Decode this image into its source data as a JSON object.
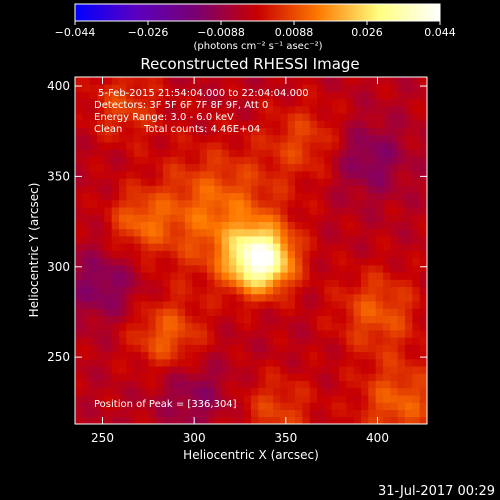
{
  "chart_data": {
    "type": "heatmap",
    "title": "Reconstructed RHESSI Image",
    "xlabel": "Heliocentric X (arcsec)",
    "ylabel": "Heliocentric Y (arcsec)",
    "xlim": [
      235,
      427
    ],
    "ylim": [
      213,
      405
    ],
    "xticks": [
      250,
      300,
      350,
      400
    ],
    "yticks": [
      250,
      300,
      350,
      400
    ],
    "colorbar": {
      "label": "(photons cm⁻² s⁻¹ asec⁻²)",
      "ticks": [
        "−0.044",
        "−0.026",
        "−0.0088",
        "0.0088",
        "0.026",
        "0.044"
      ],
      "range": [
        -0.044,
        0.044
      ],
      "colors": [
        "#0000ff",
        "#5a00c0",
        "#7a0070",
        "#c80000",
        "#ff7a00",
        "#ffff80",
        "#ffffff"
      ]
    },
    "annotations": [
      "5-Feb-2015 21:54:04.000 to 22:04:04.000",
      "Detectors: 3F 5F 6F 7F 8F 9F, Att 0",
      "Energy Range: 3.0 - 6.0 keV",
      "Clean",
      "Total counts: 4.46E+04",
      "Position of Peak = [336,304]"
    ],
    "peak": {
      "x": 336,
      "y": 304
    },
    "sources": [
      {
        "x": 336,
        "y": 304,
        "sigma": 12,
        "amp": 0.044
      },
      {
        "x": 312,
        "y": 330,
        "sigma": 24,
        "amp": 0.016
      },
      {
        "x": 285,
        "y": 262,
        "sigma": 14,
        "amp": 0.014
      },
      {
        "x": 270,
        "y": 325,
        "sigma": 12,
        "amp": 0.012
      },
      {
        "x": 400,
        "y": 275,
        "sigma": 16,
        "amp": 0.013
      },
      {
        "x": 412,
        "y": 225,
        "sigma": 16,
        "amp": 0.014
      },
      {
        "x": 360,
        "y": 370,
        "sigma": 15,
        "amp": 0.01
      },
      {
        "x": 345,
        "y": 220,
        "sigma": 15,
        "amp": 0.01
      },
      {
        "x": 262,
        "y": 390,
        "sigma": 14,
        "amp": 0.01
      },
      {
        "x": 395,
        "y": 360,
        "sigma": 14,
        "amp": -0.01
      },
      {
        "x": 250,
        "y": 290,
        "sigma": 14,
        "amp": -0.01
      },
      {
        "x": 300,
        "y": 230,
        "sigma": 14,
        "amp": -0.008
      }
    ],
    "grid": false
  },
  "footer": {
    "timestamp": "31-Jul-2017 00:29"
  }
}
